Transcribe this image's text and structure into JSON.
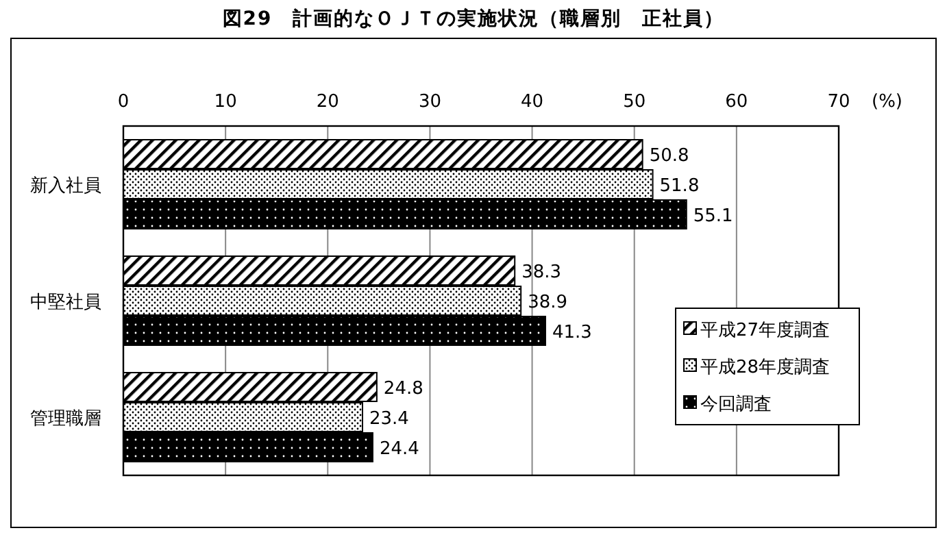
{
  "chart_data": {
    "type": "bar",
    "orientation": "horizontal",
    "title": "図29　計画的なＯＪＴの実施状況（職層別　正社員）",
    "xlabel": "(%)",
    "categories": [
      "新入社員",
      "中堅社員",
      "管理職層"
    ],
    "series": [
      {
        "name": "平成27年度調査",
        "color": "#000000",
        "values": [
          50.8,
          38.3,
          24.8
        ]
      },
      {
        "name": "平成28年度調査",
        "color": "#000000",
        "values": [
          51.8,
          38.9,
          23.4
        ]
      },
      {
        "name": "今回調査",
        "color": "#000000",
        "values": [
          55.1,
          41.3,
          24.4
        ]
      }
    ],
    "xlim": [
      0,
      70
    ],
    "xticks": [
      0,
      10,
      20,
      30,
      40,
      50,
      60,
      70
    ],
    "grid": "x",
    "legend": "bottom right",
    "data_labels": true
  }
}
